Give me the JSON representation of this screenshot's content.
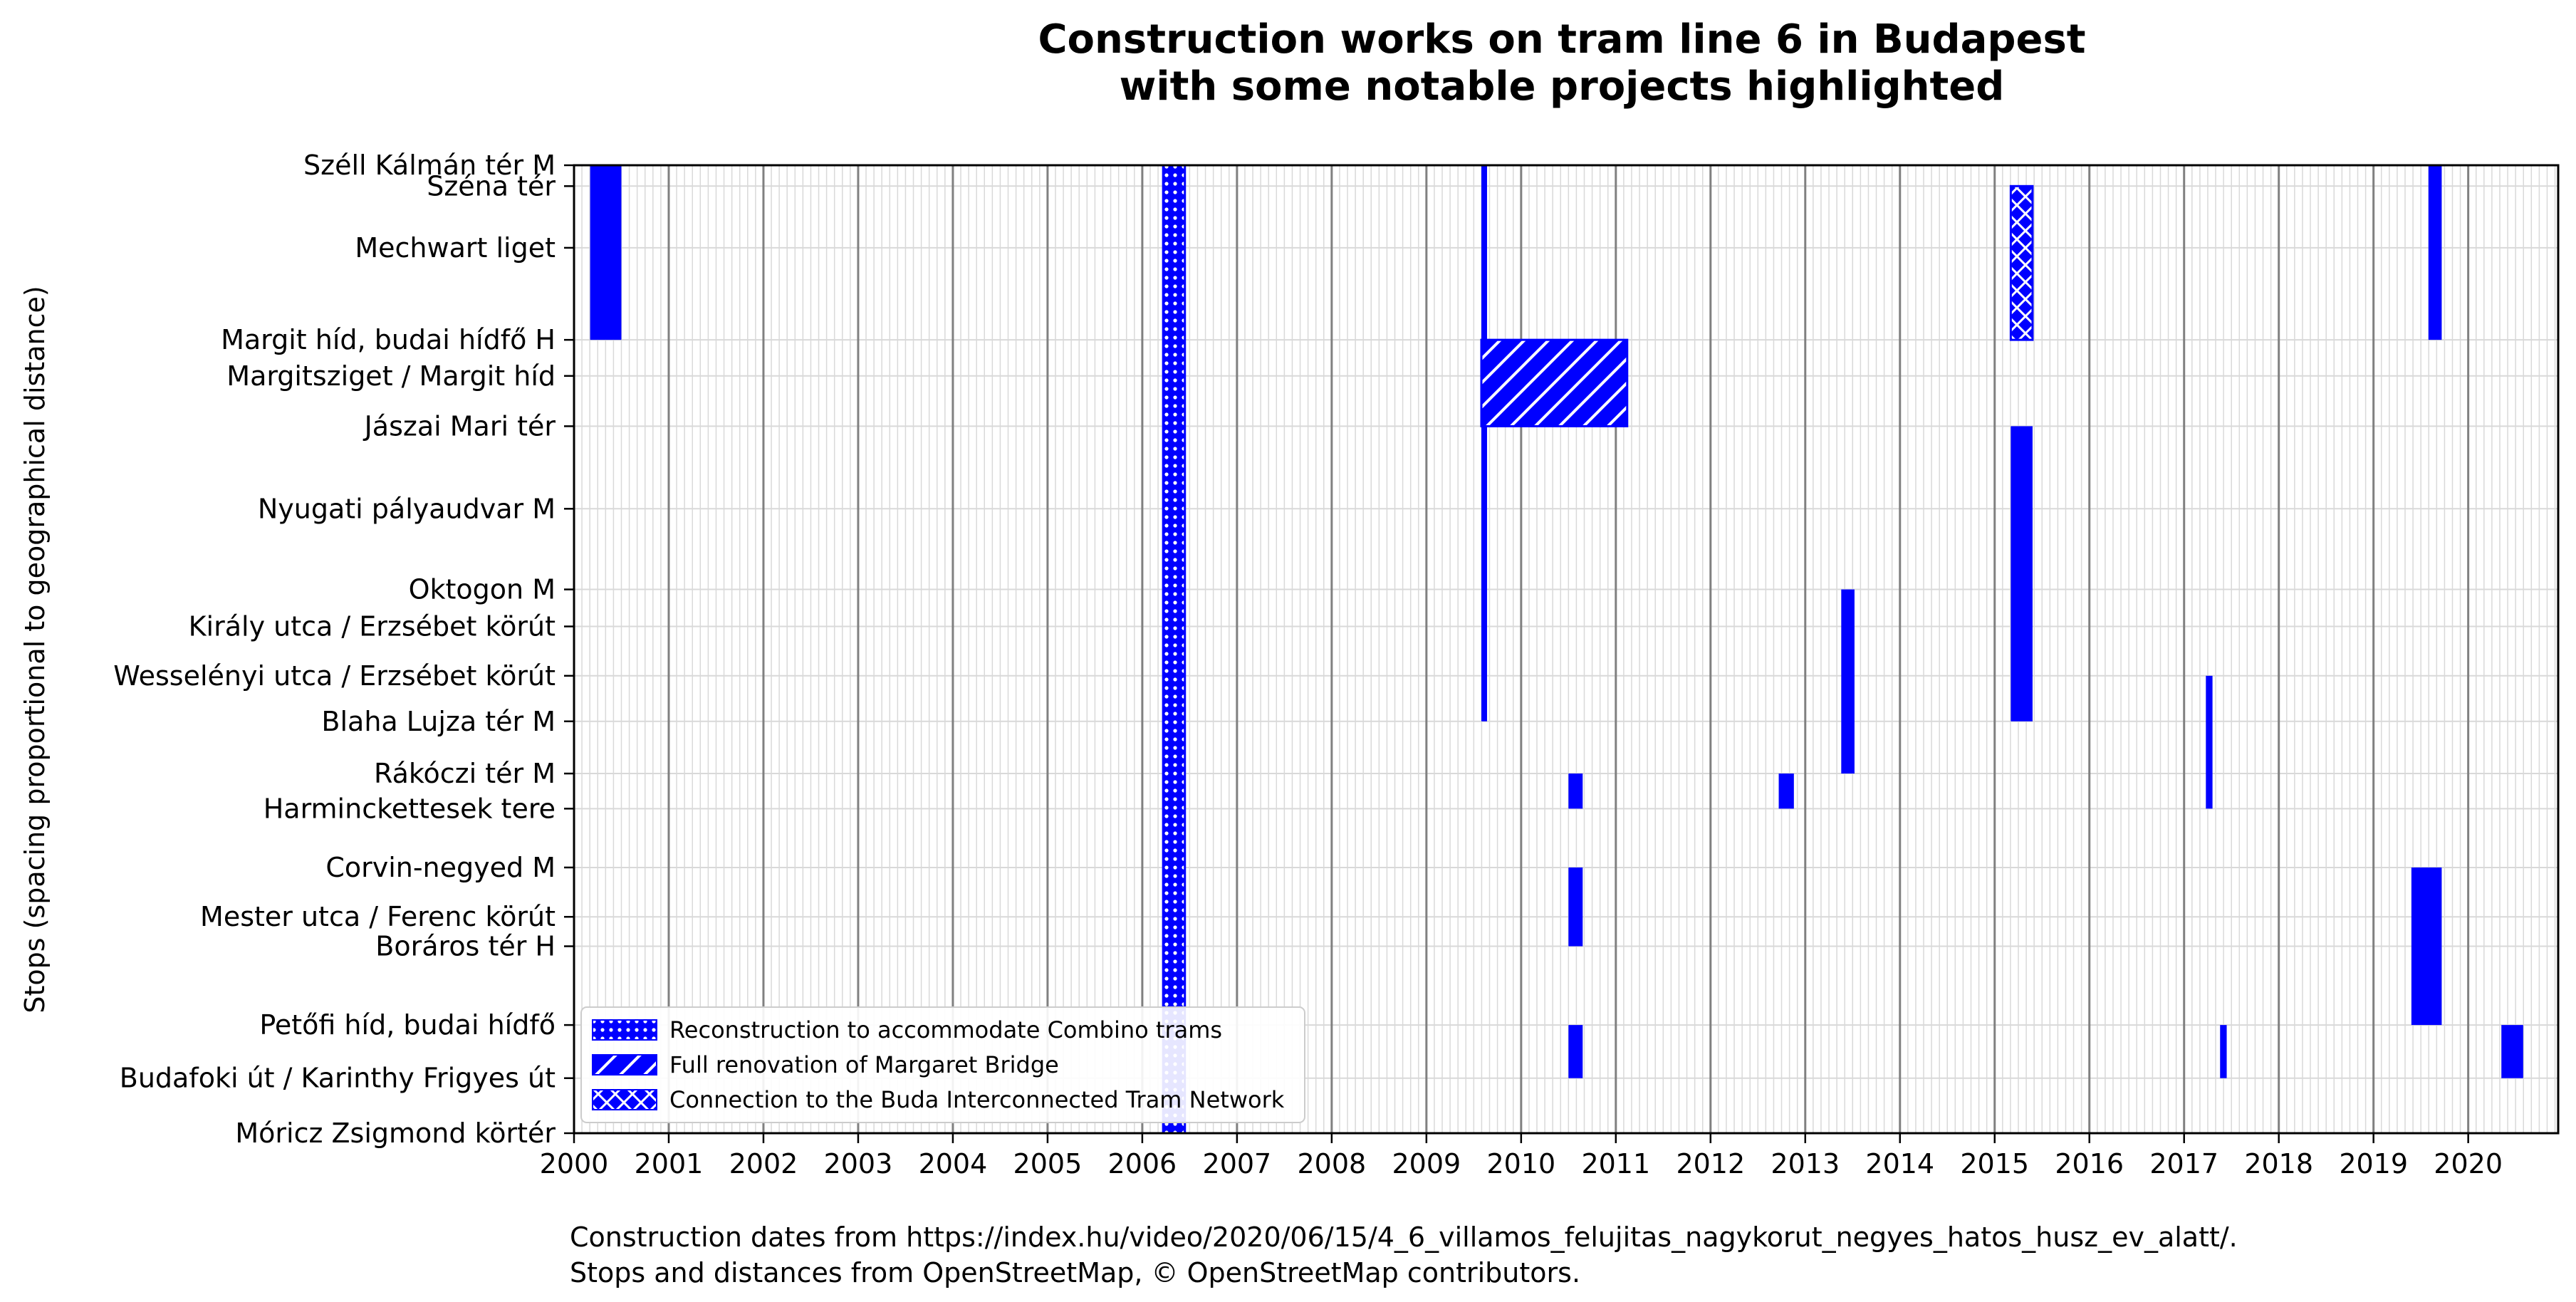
{
  "chart_data": {
    "type": "timeline",
    "title": "Construction works on tram line 6 in Budapest",
    "subtitle": "with some notable projects highlighted",
    "ylabel": "Stops (spacing proportional to geographical distance)",
    "xlabel": "",
    "xlim": [
      2000,
      2020.95
    ],
    "ylim": [
      0,
      10.2
    ],
    "y_inverted": true,
    "grid": true,
    "legend_position": "lower-left",
    "x_ticks": [
      "2000",
      "2001",
      "2002",
      "2003",
      "2004",
      "2005",
      "2006",
      "2007",
      "2008",
      "2009",
      "2010",
      "2011",
      "2012",
      "2013",
      "2014",
      "2015",
      "2016",
      "2017",
      "2018",
      "2019",
      "2020"
    ],
    "stops": [
      {
        "name": "Széll Kálmán tér M",
        "pos": 0.0
      },
      {
        "name": "Széna tér",
        "pos": 0.22
      },
      {
        "name": "Mechwart liget",
        "pos": 0.87
      },
      {
        "name": "Margit híd, budai hídfő H",
        "pos": 1.84
      },
      {
        "name": "Margitsziget / Margit híd",
        "pos": 2.22
      },
      {
        "name": "Jászai Mari tér",
        "pos": 2.75
      },
      {
        "name": "Nyugati pályaudvar M",
        "pos": 3.62
      },
      {
        "name": "Oktogon M",
        "pos": 4.47
      },
      {
        "name": "Király utca / Erzsébet körút",
        "pos": 4.86
      },
      {
        "name": "Wesselényi utca / Erzsébet körút",
        "pos": 5.38
      },
      {
        "name": "Blaha Lujza tér M",
        "pos": 5.86
      },
      {
        "name": "Rákóczi tér M",
        "pos": 6.41
      },
      {
        "name": "Harminckettesek tere",
        "pos": 6.78
      },
      {
        "name": "Corvin-negyed M",
        "pos": 7.4
      },
      {
        "name": "Mester utca / Ferenc körút",
        "pos": 7.92
      },
      {
        "name": "Boráros tér H",
        "pos": 8.23
      },
      {
        "name": "Petőfi híd, budai hídfő",
        "pos": 9.06
      },
      {
        "name": "Budafoki út / Karinthy Frigyes út",
        "pos": 9.62
      },
      {
        "name": "Móricz Zsigmond körtér",
        "pos": 10.2
      }
    ],
    "works": [
      {
        "start": 2000.17,
        "end": 2000.5,
        "from": 0.0,
        "to": 1.84,
        "project": ""
      },
      {
        "start": 2006.22,
        "end": 2006.45,
        "from": 0.0,
        "to": 10.2,
        "project": "combino"
      },
      {
        "start": 2009.58,
        "end": 2009.63,
        "from": 0.0,
        "to": 5.86,
        "project": ""
      },
      {
        "start": 2009.58,
        "end": 2011.12,
        "from": 1.84,
        "to": 2.75,
        "project": "margaret"
      },
      {
        "start": 2015.17,
        "end": 2015.4,
        "from": 0.22,
        "to": 1.84,
        "project": "buda"
      },
      {
        "start": 2015.17,
        "end": 2015.4,
        "from": 2.75,
        "to": 5.86,
        "project": ""
      },
      {
        "start": 2019.58,
        "end": 2019.72,
        "from": 0.0,
        "to": 1.84,
        "project": ""
      },
      {
        "start": 2013.38,
        "end": 2013.52,
        "from": 4.47,
        "to": 6.41,
        "project": ""
      },
      {
        "start": 2017.23,
        "end": 2017.3,
        "from": 5.38,
        "to": 6.78,
        "project": ""
      },
      {
        "start": 2010.5,
        "end": 2010.65,
        "from": 6.41,
        "to": 6.78,
        "project": ""
      },
      {
        "start": 2012.72,
        "end": 2012.88,
        "from": 6.41,
        "to": 6.78,
        "project": ""
      },
      {
        "start": 2010.5,
        "end": 2010.65,
        "from": 7.4,
        "to": 8.23,
        "project": ""
      },
      {
        "start": 2019.4,
        "end": 2019.72,
        "from": 7.4,
        "to": 9.06,
        "project": ""
      },
      {
        "start": 2010.5,
        "end": 2010.65,
        "from": 9.06,
        "to": 9.62,
        "project": ""
      },
      {
        "start": 2017.38,
        "end": 2017.45,
        "from": 9.06,
        "to": 9.62,
        "project": ""
      },
      {
        "start": 2020.35,
        "end": 2020.58,
        "from": 9.06,
        "to": 9.62,
        "project": ""
      }
    ],
    "legend": [
      {
        "key": "combino",
        "label": "Reconstruction to accommodate Combino trams",
        "pattern": "dots"
      },
      {
        "key": "margaret",
        "label": "Full renovation of Margaret Bridge",
        "pattern": "diagonal"
      },
      {
        "key": "buda",
        "label": "Connection to the Buda Interconnected Tram Network",
        "pattern": "crosshatch"
      }
    ],
    "colors": {
      "bar": "#0000ff",
      "major_grid": "#808080",
      "minor_grid": "#d9d9d9"
    }
  },
  "footnote": {
    "line1": "Construction dates from https://index.hu/video/2020/06/15/4_6_villamos_felujitas_nagykorut_negyes_hatos_husz_ev_alatt/.",
    "line2": "Stops and distances from OpenStreetMap, © OpenStreetMap contributors."
  }
}
